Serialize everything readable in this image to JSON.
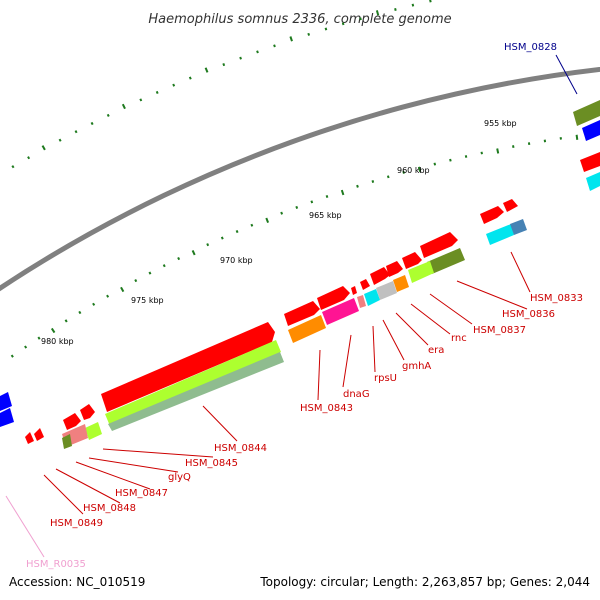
{
  "title": "Haemophilus somnus 2336, complete genome",
  "footer": {
    "accession": "Accession: NC_010519",
    "summary": "Topology: circular; Length: 2,263,857 bp; Genes: 2,044"
  },
  "kbp_ticks": [
    "955 kbp",
    "960 kbp",
    "965 kbp",
    "970 kbp",
    "975 kbp",
    "980 kbp"
  ],
  "gene_labels": {
    "hsm_0828": "HSM_0828",
    "hsm_0833": "HSM_0833",
    "hsm_0836": "HSM_0836",
    "hsm_0837": "HSM_0837",
    "rnc": "rnc",
    "era": "era",
    "gmhA": "gmhA",
    "rpsU": "rpsU",
    "dnaG": "dnaG",
    "hsm_0843": "HSM_0843",
    "hsm_0844": "HSM_0844",
    "hsm_0845": "HSM_0845",
    "glyQ": "glyQ",
    "hsm_0847": "HSM_0847",
    "hsm_0848": "HSM_0848",
    "hsm_0849": "HSM_0849",
    "hsm_r0035": "HSM_R0035"
  },
  "colors": {
    "backbone": "#808080",
    "cds": "#ff0000",
    "tick": "#1e7a1e",
    "label_red": "#cc0000",
    "label_blue": "#00008b",
    "label_pink": "#f0a0d0",
    "gene_blue": "#0000ff",
    "gene_olive": "#6b8e23",
    "gene_cyan": "#00e5ee",
    "gene_orange": "#ff8c00",
    "gene_magenta": "#ff1493",
    "gene_lime": "#adff2f",
    "gene_salmon": "#f08080"
  }
}
